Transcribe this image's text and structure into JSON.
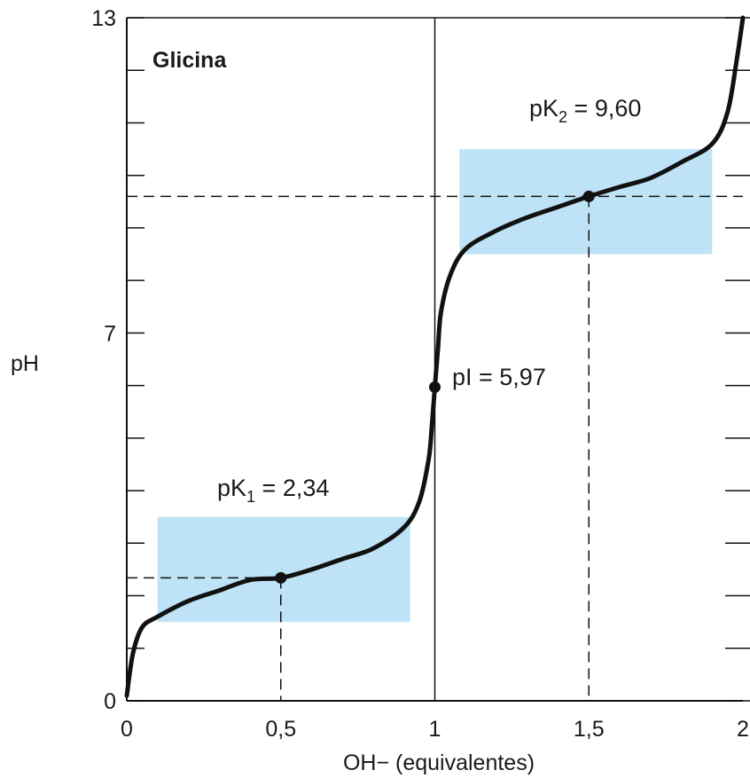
{
  "chart_data": {
    "type": "line",
    "title": "Glicina",
    "xlabel": "OH− (equivalentes)",
    "ylabel": "pH",
    "xlim": [
      0,
      2
    ],
    "ylim": [
      0,
      13
    ],
    "x_ticks": [
      "0",
      "0,5",
      "1",
      "1,5",
      "2"
    ],
    "y_ticks": [
      "0",
      "7",
      "13"
    ],
    "y_minor_tick_step": 1,
    "series": [
      {
        "x": [
          0,
          0.02,
          0.05,
          0.1,
          0.2,
          0.3,
          0.4,
          0.5,
          0.6,
          0.7,
          0.8,
          0.9,
          0.95,
          0.98,
          0.99,
          1.0,
          1.01,
          1.02,
          1.05,
          1.1,
          1.2,
          1.3,
          1.4,
          1.5,
          1.6,
          1.7,
          1.8,
          1.9,
          1.95,
          1.98,
          2.0
        ],
        "y": [
          0.1,
          0.9,
          1.4,
          1.6,
          1.9,
          2.1,
          2.3,
          2.34,
          2.5,
          2.7,
          2.9,
          3.3,
          3.8,
          4.6,
          5.2,
          5.97,
          6.7,
          7.4,
          8.1,
          8.6,
          8.95,
          9.2,
          9.4,
          9.6,
          9.78,
          9.95,
          10.25,
          10.6,
          11.2,
          12.2,
          13.0
        ],
        "color": "#111111"
      }
    ],
    "highlight_regions": [
      {
        "x": [
          0.1,
          0.92
        ],
        "y": [
          1.5,
          3.5
        ],
        "color": "#bfe3f6"
      },
      {
        "x": [
          1.08,
          1.9
        ],
        "y": [
          8.5,
          10.5
        ],
        "color": "#bfe3f6"
      }
    ],
    "vertical_line_x": 1,
    "key_points": [
      {
        "x": 0.5,
        "y": 2.34,
        "label": "pK1 = 2,34",
        "label_main": "pK",
        "label_sub": "1",
        "label_rest": " = 2,34"
      },
      {
        "x": 1.0,
        "y": 5.97,
        "label": "pI = 5,97"
      },
      {
        "x": 1.5,
        "y": 9.6,
        "label": "pK2 = 9,60",
        "label_main": "pK",
        "label_sub": "2",
        "label_rest": " = 9,60"
      }
    ],
    "grid": false,
    "legend": "none"
  }
}
